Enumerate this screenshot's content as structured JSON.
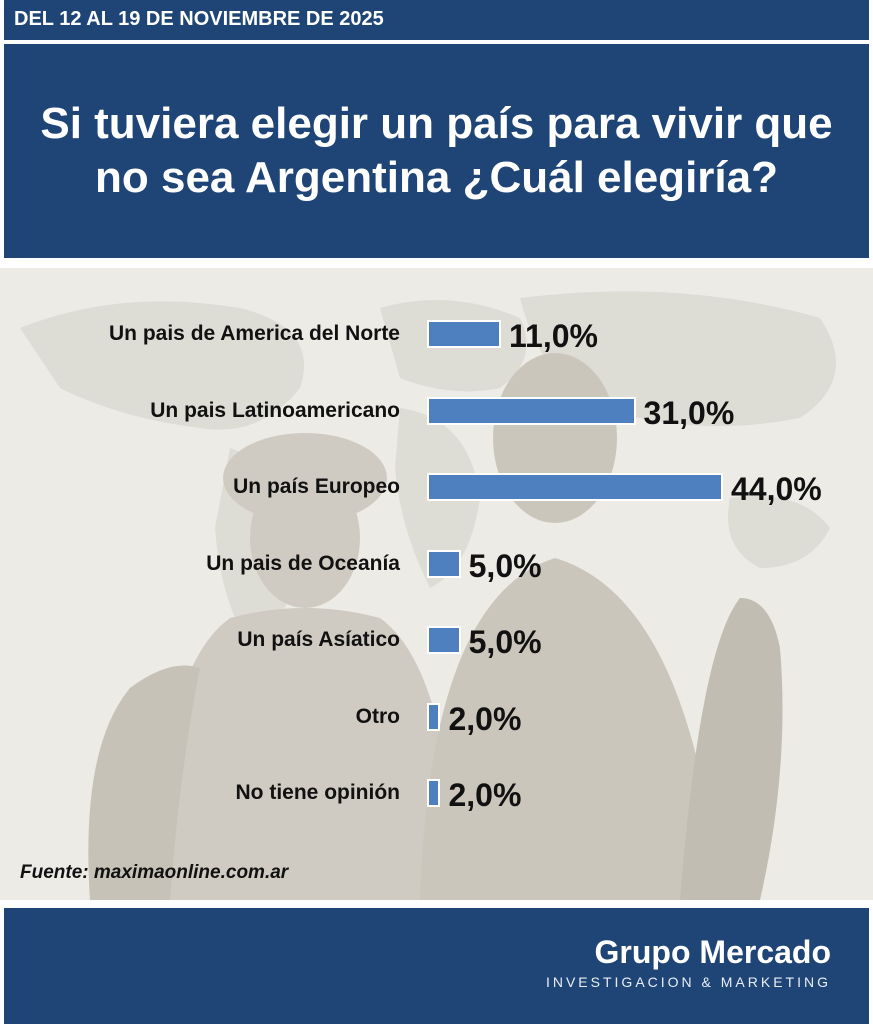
{
  "header": {
    "date_range": "DEL 12 AL 19 DE NOVIEMBRE DE 2025",
    "question": "Si tuviera elegir un país para vivir que no sea Argentina ¿Cuál elegiría?"
  },
  "chart_data": {
    "type": "bar",
    "orientation": "horizontal",
    "categories": [
      "Un pais de America del Norte",
      "Un pais Latinoamericano",
      "Un país Europeo",
      "Un pais de Oceanía",
      "Un país Asíatico",
      "Otro",
      "No tiene opinión"
    ],
    "values": [
      11.0,
      31.0,
      44.0,
      5.0,
      5.0,
      2.0,
      2.0
    ],
    "value_labels": [
      "11,0%",
      "31,0%",
      "44,0%",
      "5,0%",
      "5,0%",
      "2,0%",
      "2,0%"
    ],
    "xlim": [
      0,
      44
    ],
    "bar_color": "#4e7fbe",
    "grid": false
  },
  "source": "Fuente: maximaonline.com.ar",
  "footer": {
    "brand_name": "Grupo Mercado",
    "brand_tagline": "INVESTIGACION & MARKETING"
  },
  "colors": {
    "header_bg": "#1f4577",
    "chart_bg": "#ecebe6"
  }
}
